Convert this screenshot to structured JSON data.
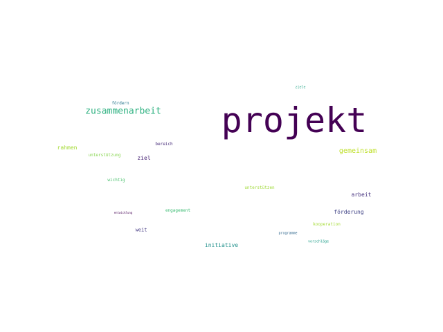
{
  "words": [
    {
      "text": "projekt",
      "color": "#440154"
    },
    {
      "text": "zusammenarbeit",
      "color": "#2bb07f"
    },
    {
      "text": "gemeinsam",
      "color": "#bddf26"
    },
    {
      "text": "fördern",
      "color": "#2a788e"
    },
    {
      "text": "rahmen",
      "color": "#a5db36"
    },
    {
      "text": "bereich",
      "color": "#472c7a"
    },
    {
      "text": "unterstützung",
      "color": "#84d44b"
    },
    {
      "text": "ziel",
      "color": "#482475"
    },
    {
      "text": "wichtig",
      "color": "#4ac16d"
    },
    {
      "text": "unterstützen",
      "color": "#a0da39"
    },
    {
      "text": "arbeit",
      "color": "#46337f"
    },
    {
      "text": "engagement",
      "color": "#3dbc74"
    },
    {
      "text": "förderung",
      "color": "#414487"
    },
    {
      "text": "entwicklung",
      "color": "#440154"
    },
    {
      "text": "kooperation",
      "color": "#a5db36"
    },
    {
      "text": "weit",
      "color": "#443983"
    },
    {
      "text": "programme",
      "color": "#31688e"
    },
    {
      "text": "initiative",
      "color": "#21918c"
    },
    {
      "text": "vorschläge",
      "color": "#1f9e89"
    },
    {
      "text": "ziele",
      "color": "#20a486"
    }
  ]
}
